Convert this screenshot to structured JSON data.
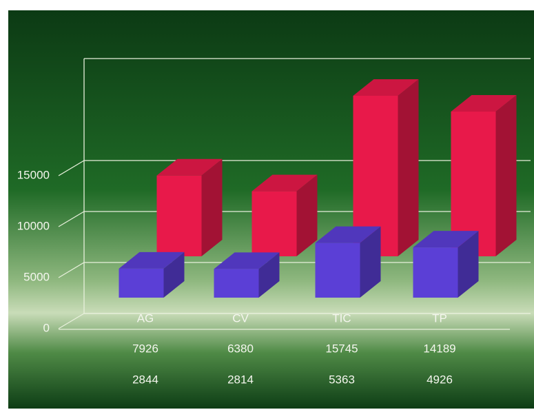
{
  "chart_data": {
    "type": "bar3d",
    "categories": [
      "AG",
      "CV",
      "TIC",
      "TP"
    ],
    "series": [
      {
        "color": "#e8194a",
        "values": [
          7926,
          6380,
          15745,
          14189
        ]
      },
      {
        "color": "#5b3fd6",
        "values": [
          2844,
          2814,
          5363,
          4926
        ]
      }
    ],
    "ylim": [
      0,
      25000
    ],
    "yticks": [
      0,
      5000,
      10000,
      15000
    ],
    "grid": true
  }
}
